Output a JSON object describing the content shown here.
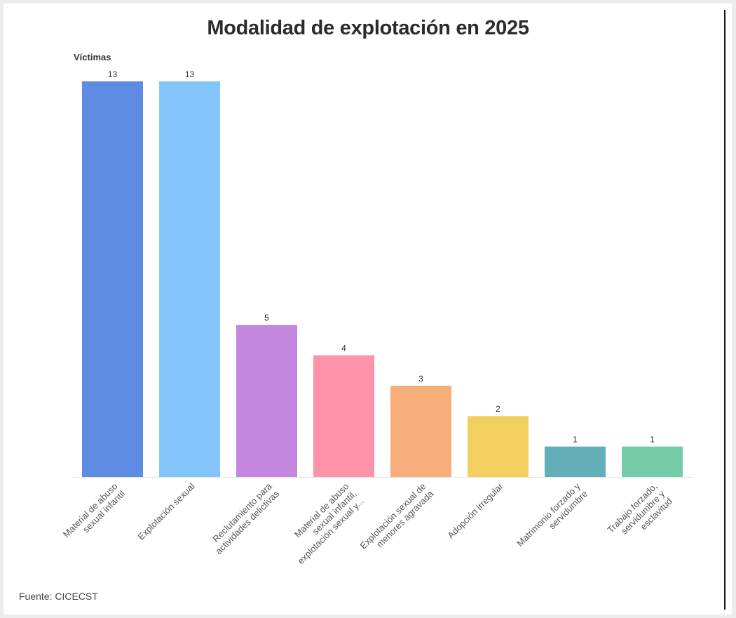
{
  "chart_data": {
    "type": "bar",
    "title": "Modalidad de explotación en 2025",
    "xlabel": "",
    "ylabel": "Víctimas",
    "ylim": [
      0,
      13
    ],
    "grid": false,
    "legend": "none",
    "categories": [
      "Material de abuso sexual infantil",
      "Explotación sexual",
      "Reclutamiento para actividades delictivas",
      "Material de abuso sexual infantil, explotación sexual y...",
      "Explotación sexual de menores agravada",
      "Adopción irregular",
      "Matrimonio forzado y servidumbre",
      "Trabajo forzado, servidumbre y esclavitud"
    ],
    "category_lines": [
      [
        "Material de abuso",
        "sexual infantil"
      ],
      [
        "Explotación sexual"
      ],
      [
        "Reclutamiento para",
        "actividades delictivas"
      ],
      [
        "Material de abuso",
        "sexual infantil,",
        "explotación sexual y..."
      ],
      [
        "Explotación sexual de",
        "menores agravada"
      ],
      [
        "Adopción irregular"
      ],
      [
        "Matrimonio forzado y",
        "servidumbre"
      ],
      [
        "Trabajo forzado,",
        "servidumbre y",
        "esclavitud"
      ]
    ],
    "values": [
      13,
      13,
      5,
      4,
      3,
      2,
      1,
      1
    ],
    "colors": [
      "#5e8ce3",
      "#84c5fb",
      "#c387e0",
      "#fe93a9",
      "#f8ae7b",
      "#f3cf60",
      "#62afb7",
      "#76cba7"
    ],
    "source": "Fuente: CICECST"
  }
}
